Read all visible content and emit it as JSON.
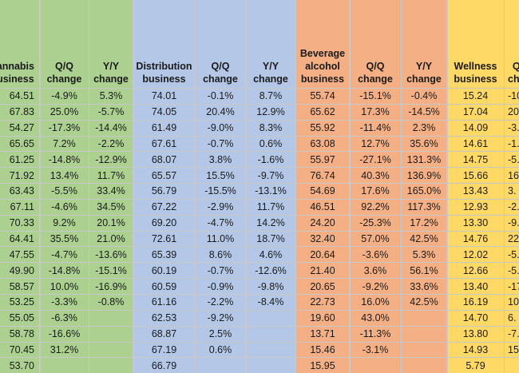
{
  "colors": {
    "cannabis": "#acd090",
    "distribution": "#b4c7e7",
    "beverage": "#f4b084",
    "wellness": "#ffd966",
    "gridline": "#c8c8c8"
  },
  "headers": [
    "annabis\nusiness",
    "Q/Q\nchange",
    "Y/Y\nchange",
    "Distribution\nbusiness",
    "Q/Q\nchange",
    "Y/Y\nchange",
    "Beverage\nalcohol\nbusiness",
    "Q/Q\nchange",
    "Y/Y\nchange",
    "Wellness\nbusiness",
    "Q\ncha"
  ],
  "rows": [
    [
      "64.51",
      "-4.9%",
      "5.3%",
      "74.01",
      "-0.1%",
      "8.7%",
      "55.74",
      "-15.1%",
      "-0.4%",
      "15.24",
      "-10"
    ],
    [
      "67.83",
      "25.0%",
      "-5.7%",
      "74.05",
      "20.4%",
      "12.9%",
      "65.62",
      "17.3%",
      "-14.5%",
      "17.04",
      "20."
    ],
    [
      "54.27",
      "-17.3%",
      "-14.4%",
      "61.49",
      "-9.0%",
      "8.3%",
      "55.92",
      "-11.4%",
      "2.3%",
      "14.09",
      "-3."
    ],
    [
      "65.65",
      "7.2%",
      "-2.2%",
      "67.61",
      "-0.7%",
      "0.6%",
      "63.08",
      "12.7%",
      "35.6%",
      "14.61",
      "-1."
    ],
    [
      "61.25",
      "-14.8%",
      "-12.9%",
      "68.07",
      "3.8%",
      "-1.6%",
      "55.97",
      "-27.1%",
      "131.3%",
      "14.75",
      "-5."
    ],
    [
      "71.92",
      "13.4%",
      "11.7%",
      "65.57",
      "15.5%",
      "-9.7%",
      "76.74",
      "40.3%",
      "136.9%",
      "15.66",
      "16"
    ],
    [
      "63.43",
      "-5.5%",
      "33.4%",
      "56.79",
      "-15.5%",
      "-13.1%",
      "54.69",
      "17.6%",
      "165.0%",
      "13.43",
      "3."
    ],
    [
      "67.11",
      "-4.6%",
      "34.5%",
      "67.22",
      "-2.9%",
      "11.7%",
      "46.51",
      "92.2%",
      "117.3%",
      "12.93",
      "-2."
    ],
    [
      "70.33",
      "9.2%",
      "20.1%",
      "69.20",
      "-4.7%",
      "14.2%",
      "24.20",
      "-25.3%",
      "17.2%",
      "13.30",
      "-9."
    ],
    [
      "64.41",
      "35.5%",
      "21.0%",
      "72.61",
      "11.0%",
      "18.7%",
      "32.40",
      "57.0%",
      "42.5%",
      "14.76",
      "22."
    ],
    [
      "47.55",
      "-4.7%",
      "-13.6%",
      "65.39",
      "8.6%",
      "4.6%",
      "20.64",
      "-3.6%",
      "5.3%",
      "12.02",
      "-5."
    ],
    [
      "49.90",
      "-14.8%",
      "-15.1%",
      "60.19",
      "-0.7%",
      "-12.6%",
      "21.40",
      "3.6%",
      "56.1%",
      "12.66",
      "-5."
    ],
    [
      "58.57",
      "10.0%",
      "-16.9%",
      "60.59",
      "-0.9%",
      "-9.8%",
      "20.65",
      "-9.2%",
      "33.6%",
      "13.40",
      "-17"
    ],
    [
      "53.25",
      "-3.3%",
      "-0.8%",
      "61.16",
      "-2.2%",
      "-8.4%",
      "22.73",
      "16.0%",
      "42.5%",
      "16.19",
      "10."
    ],
    [
      "55.05",
      "-6.3%",
      "",
      "62.53",
      "-9.2%",
      "",
      "19.60",
      "43.0%",
      "",
      "14.70",
      "6."
    ],
    [
      "58.78",
      "-16.6%",
      "",
      "68.87",
      "2.5%",
      "",
      "13.71",
      "-11.3%",
      "",
      "13.80",
      "-7."
    ],
    [
      "70.45",
      "31.2%",
      "",
      "67.19",
      "0.6%",
      "",
      "15.46",
      "-3.1%",
      "",
      "14.93",
      "157"
    ],
    [
      "53.70",
      "",
      "",
      "66.79",
      "",
      "",
      "15.95",
      "",
      "",
      "5.79",
      ""
    ]
  ]
}
